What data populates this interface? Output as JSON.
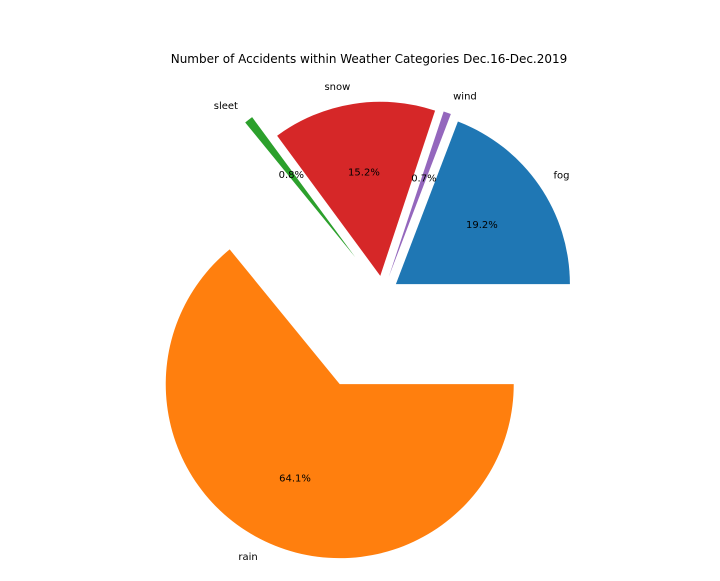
{
  "chart_data": {
    "type": "pie",
    "title": "Number of Accidents within Weather Categories Dec.16-Dec.2019",
    "slices": [
      {
        "label": "fog",
        "percent_label": "19.2%",
        "value": 19.2,
        "color": "#1f77b4",
        "exploded": true
      },
      {
        "label": "wind",
        "percent_label": "0.7%",
        "value": 0.7,
        "color": "#9467bd",
        "exploded": true
      },
      {
        "label": "snow",
        "percent_label": "15.2%",
        "value": 15.2,
        "color": "#d62728",
        "exploded": true
      },
      {
        "label": "sleet",
        "percent_label": "0.8%",
        "value": 0.8,
        "color": "#2ca02c",
        "exploded": true
      },
      {
        "label": "rain",
        "percent_label": "64.1%",
        "value": 64.1,
        "color": "#ff7f0e",
        "exploded": true
      }
    ],
    "legend": false,
    "grid": false
  }
}
